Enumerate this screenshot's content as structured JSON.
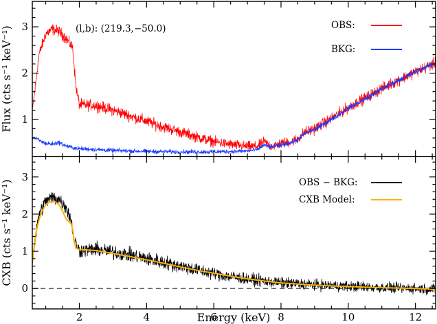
{
  "chart_data": {
    "type": "line",
    "xlabel": "Energy (keV)",
    "xlim": [
      0.6,
      12.6
    ],
    "x_ticks": [
      2,
      4,
      6,
      8,
      10,
      12
    ],
    "x_tick_labels": [
      "2",
      "4",
      "6",
      "8",
      "10",
      "12"
    ],
    "grid": false,
    "panels": [
      {
        "name": "top",
        "ylabel": "Flux (cts s⁻¹ keV⁻¹)",
        "ylim": [
          0.2,
          3.55
        ],
        "y_ticks": [
          1,
          2,
          3
        ],
        "y_tick_labels": [
          "1",
          "2",
          "3"
        ],
        "annotation": "(l,b): (219.3,−50.0)",
        "legend_position": "top-right",
        "series": [
          {
            "name": "OBS:",
            "color": "#ff0000",
            "noise": 0.1,
            "x": [
              0.6,
              0.8,
              1.0,
              1.2,
              1.4,
              1.6,
              1.8,
              1.9,
              2.0,
              2.5,
              3.0,
              3.5,
              4.0,
              4.5,
              5.0,
              5.5,
              6.0,
              6.5,
              7.0,
              7.3,
              7.5,
              7.7,
              8.0,
              8.3,
              8.5,
              8.7,
              9.0,
              9.5,
              10.0,
              10.5,
              11.0,
              11.5,
              12.0,
              12.6
            ],
            "y": [
              1.15,
              2.4,
              2.85,
              2.95,
              2.9,
              2.75,
              2.55,
              1.7,
              1.32,
              1.3,
              1.2,
              1.08,
              0.96,
              0.84,
              0.73,
              0.62,
              0.52,
              0.46,
              0.42,
              0.42,
              0.52,
              0.42,
              0.48,
              0.52,
              0.58,
              0.72,
              0.8,
              1.02,
              1.26,
              1.46,
              1.67,
              1.85,
              2.03,
              2.22
            ]
          },
          {
            "name": "BKG:",
            "color": "#1a3cff",
            "noise": 0.045,
            "x": [
              0.6,
              0.8,
              1.0,
              1.2,
              1.4,
              1.6,
              1.8,
              2.0,
              3.0,
              4.0,
              5.0,
              6.0,
              7.0,
              7.3,
              7.5,
              7.7,
              8.0,
              8.3,
              8.5,
              8.7,
              9.0,
              9.5,
              10.0,
              10.5,
              11.0,
              11.5,
              12.0,
              12.6
            ],
            "y": [
              0.62,
              0.55,
              0.48,
              0.47,
              0.5,
              0.43,
              0.39,
              0.37,
              0.33,
              0.31,
              0.3,
              0.3,
              0.32,
              0.35,
              0.45,
              0.4,
              0.45,
              0.5,
              0.56,
              0.7,
              0.78,
              1.0,
              1.24,
              1.44,
              1.66,
              1.85,
              2.03,
              2.22
            ]
          }
        ]
      },
      {
        "name": "bottom",
        "ylabel": "CXB (cts s⁻¹ keV⁻¹)",
        "ylim": [
          -0.55,
          3.55
        ],
        "y_ticks": [
          0,
          1,
          2,
          3
        ],
        "y_tick_labels": [
          "0",
          "1",
          "2",
          "3"
        ],
        "zero_line": "dashed",
        "legend_position": "top-right",
        "series": [
          {
            "name": "OBS − BKG:",
            "color": "#000000",
            "noise": 0.16,
            "x": [
              0.6,
              0.8,
              1.0,
              1.2,
              1.4,
              1.6,
              1.75,
              1.85,
              2.0,
              2.5,
              3.0,
              3.5,
              4.0,
              4.5,
              5.0,
              5.5,
              6.0,
              6.5,
              7.0,
              7.5,
              8.0,
              9.0,
              10.0,
              11.0,
              12.0,
              12.6
            ],
            "y": [
              0.75,
              2.0,
              2.35,
              2.45,
              2.4,
              2.2,
              1.85,
              1.3,
              1.02,
              1.05,
              0.98,
              0.9,
              0.8,
              0.7,
              0.6,
              0.5,
              0.4,
              0.32,
              0.25,
              0.2,
              0.15,
              0.1,
              0.06,
              0.02,
              0.0,
              -0.02
            ]
          },
          {
            "name": "CXB Model:",
            "color": "#ffb000",
            "noise": 0,
            "x": [
              0.6,
              0.7,
              0.8,
              0.9,
              1.0,
              1.1,
              1.2,
              1.3,
              1.4,
              1.5,
              1.6,
              1.7,
              1.75,
              1.8,
              1.85,
              1.9,
              2.0,
              2.5,
              3.0,
              3.5,
              4.0,
              4.5,
              5.0,
              5.5,
              6.0,
              6.5,
              7.0,
              7.5,
              8.0,
              9.0,
              10.0,
              11.0,
              12.0,
              12.6
            ],
            "y": [
              0.72,
              1.45,
              1.85,
              2.1,
              2.25,
              2.32,
              2.34,
              2.32,
              2.25,
              2.08,
              1.88,
              1.78,
              1.76,
              1.6,
              1.25,
              1.08,
              1.05,
              1.02,
              0.94,
              0.86,
              0.77,
              0.68,
              0.58,
              0.49,
              0.41,
              0.33,
              0.26,
              0.2,
              0.15,
              0.09,
              0.05,
              0.02,
              0.0,
              -0.02
            ]
          }
        ]
      }
    ]
  }
}
